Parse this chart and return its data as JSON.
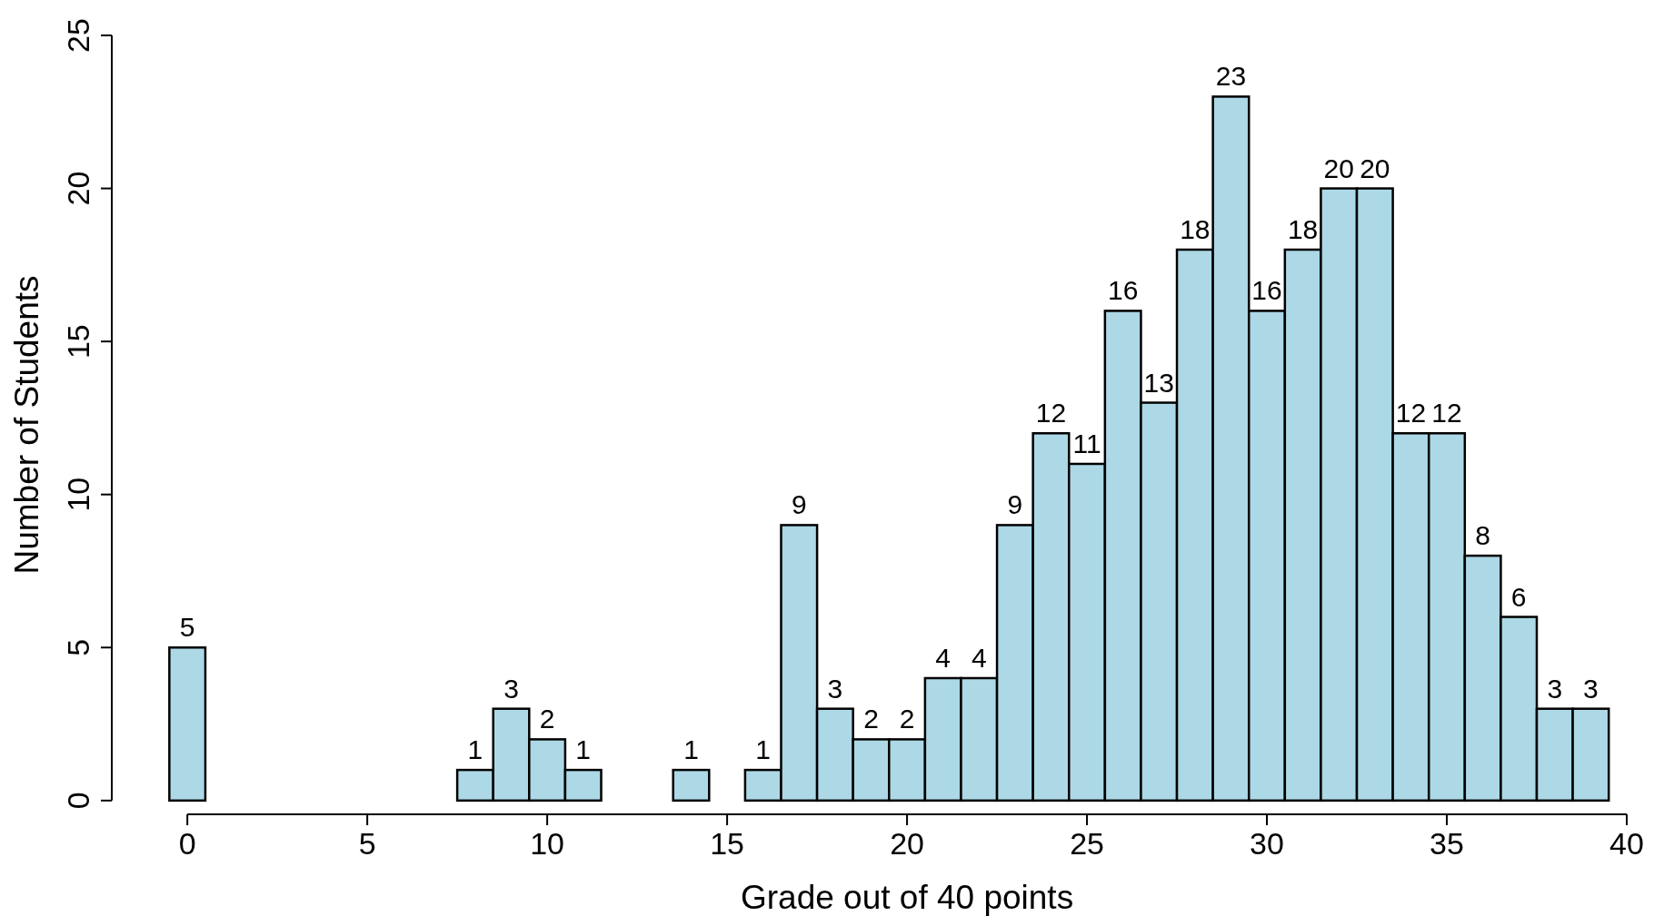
{
  "chart_data": {
    "type": "histogram",
    "xlabel": "Grade out of 40 points",
    "ylabel": "Number of Students",
    "color": "#add8e6",
    "bins": [
      -0.5,
      0.5,
      1.5,
      2.5,
      3.5,
      4.5,
      5.5,
      6.5,
      7.5,
      8.5,
      9.5,
      10.5,
      11.5,
      12.5,
      13.5,
      14.5,
      15.5,
      16.5,
      17.5,
      18.5,
      19.5,
      20.5,
      21.5,
      22.5,
      23.5,
      24.5,
      25.5,
      26.5,
      27.5,
      28.5,
      29.5,
      30.5,
      31.5,
      32.5,
      33.5,
      34.5,
      35.5,
      36.5,
      37.5,
      38.5,
      39.5
    ],
    "values": [
      5,
      0,
      0,
      0,
      0,
      0,
      0,
      0,
      1,
      3,
      2,
      1,
      0,
      0,
      1,
      0,
      1,
      9,
      3,
      2,
      2,
      4,
      4,
      9,
      12,
      11,
      16,
      13,
      18,
      23,
      16,
      18,
      20,
      20,
      12,
      12,
      8,
      6,
      3,
      3
    ],
    "value_labels": [
      "5",
      null,
      null,
      null,
      null,
      null,
      null,
      null,
      "1",
      "3",
      "2",
      "1",
      null,
      null,
      "1",
      null,
      "1",
      "9",
      "3",
      "2",
      "2",
      "4",
      "4",
      "9",
      "12",
      "11",
      "16",
      "13",
      "18",
      "23",
      "16",
      "18",
      "20",
      "20",
      "12",
      "12",
      "8",
      "6",
      "3",
      "3"
    ],
    "xlim": [
      -2.1,
      40
    ],
    "ylim": [
      -0.45,
      25
    ],
    "xticks": [
      0,
      5,
      10,
      15,
      20,
      25,
      30,
      35,
      40
    ],
    "yticks": [
      0,
      5,
      10,
      15,
      20,
      25
    ],
    "grid": false
  }
}
